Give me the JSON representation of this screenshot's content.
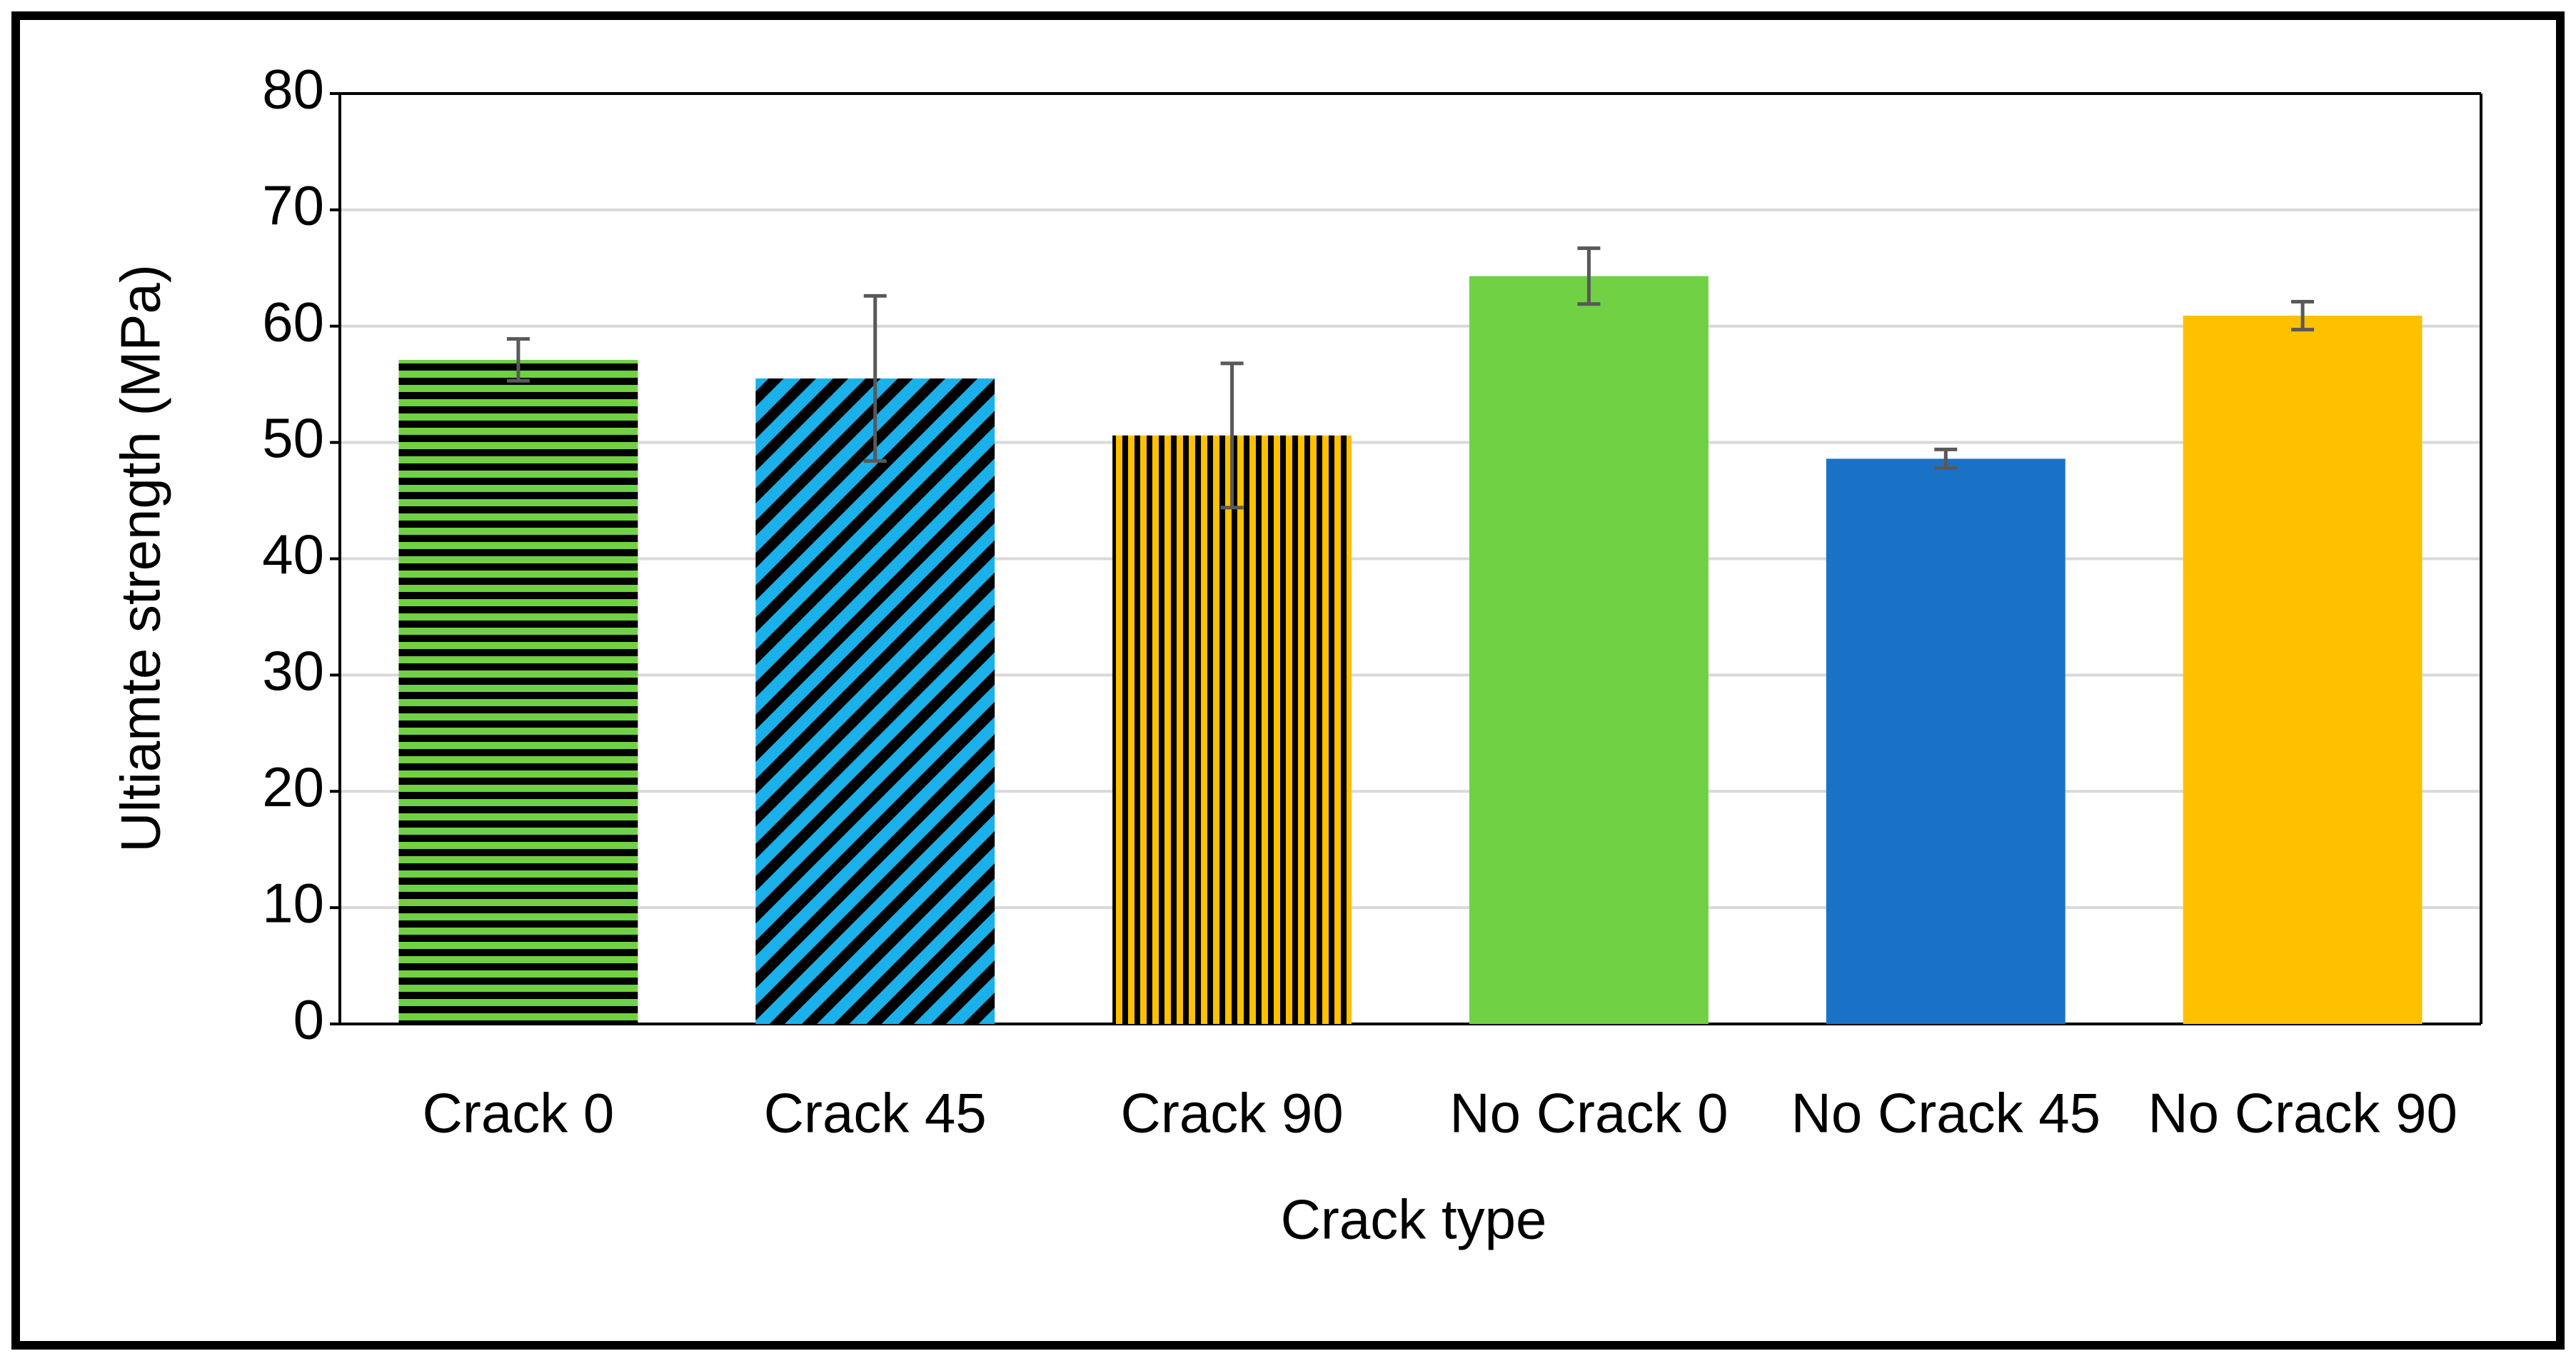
{
  "chart_data": {
    "type": "bar",
    "x_label": "Crack type",
    "y_label": "Ultiamte strength (MPa)",
    "categories": [
      "Crack 0",
      "Crack 45",
      "Crack 90",
      "No Crack 0",
      "No Crack 45",
      "No Crack 90"
    ],
    "values": [
      57.1,
      55.5,
      50.6,
      64.3,
      48.6,
      60.9
    ],
    "errors": [
      1.8,
      7.1,
      6.2,
      2.4,
      0.8,
      1.2
    ],
    "colors": [
      "#6fd143",
      "#1ab0ea",
      "#ffc000",
      "#6fd143",
      "#1a72c7",
      "#ffc000"
    ],
    "patterns": [
      "horizontal",
      "diagonal",
      "vertical",
      "solid",
      "solid",
      "solid"
    ],
    "ylim": [
      0,
      80
    ],
    "yticks": [
      0,
      10,
      20,
      30,
      40,
      50,
      60,
      70,
      80
    ],
    "grid": true
  }
}
